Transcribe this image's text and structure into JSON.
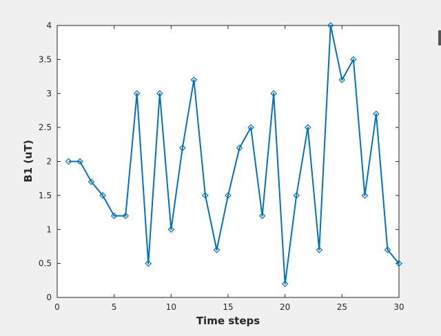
{
  "chart_data": {
    "type": "line",
    "title": "",
    "xlabel": "Time steps",
    "ylabel": "B1 (uT)",
    "xlim": [
      0,
      30
    ],
    "ylim": [
      0,
      4
    ],
    "xticks": [
      0,
      5,
      10,
      15,
      20,
      25,
      30
    ],
    "yticks": [
      0,
      0.5,
      1,
      1.5,
      2,
      2.5,
      3,
      3.5,
      4
    ],
    "grid": false,
    "marker": "diamond",
    "colors": {
      "line": "#0072bd",
      "axes_bg": "#ffffff",
      "figure_bg": "#f0f0f0"
    },
    "series": [
      {
        "x": [
          1,
          2,
          3,
          4,
          5,
          6,
          7,
          8,
          9,
          10,
          11,
          12,
          13,
          14,
          15,
          16,
          17,
          18,
          19,
          20,
          21,
          22,
          23,
          24,
          25,
          26,
          27,
          28,
          29,
          30
        ],
        "values": [
          2,
          2,
          1.7,
          1.5,
          1.2,
          1.2,
          3,
          0.5,
          3,
          1,
          2.2,
          3.2,
          1.5,
          0.7,
          1.5,
          2.2,
          2.5,
          1.2,
          3,
          0.2,
          1.5,
          2.5,
          0.7,
          4,
          3.2,
          3.5,
          1.5,
          2.7,
          0.7,
          0.5
        ]
      }
    ]
  }
}
